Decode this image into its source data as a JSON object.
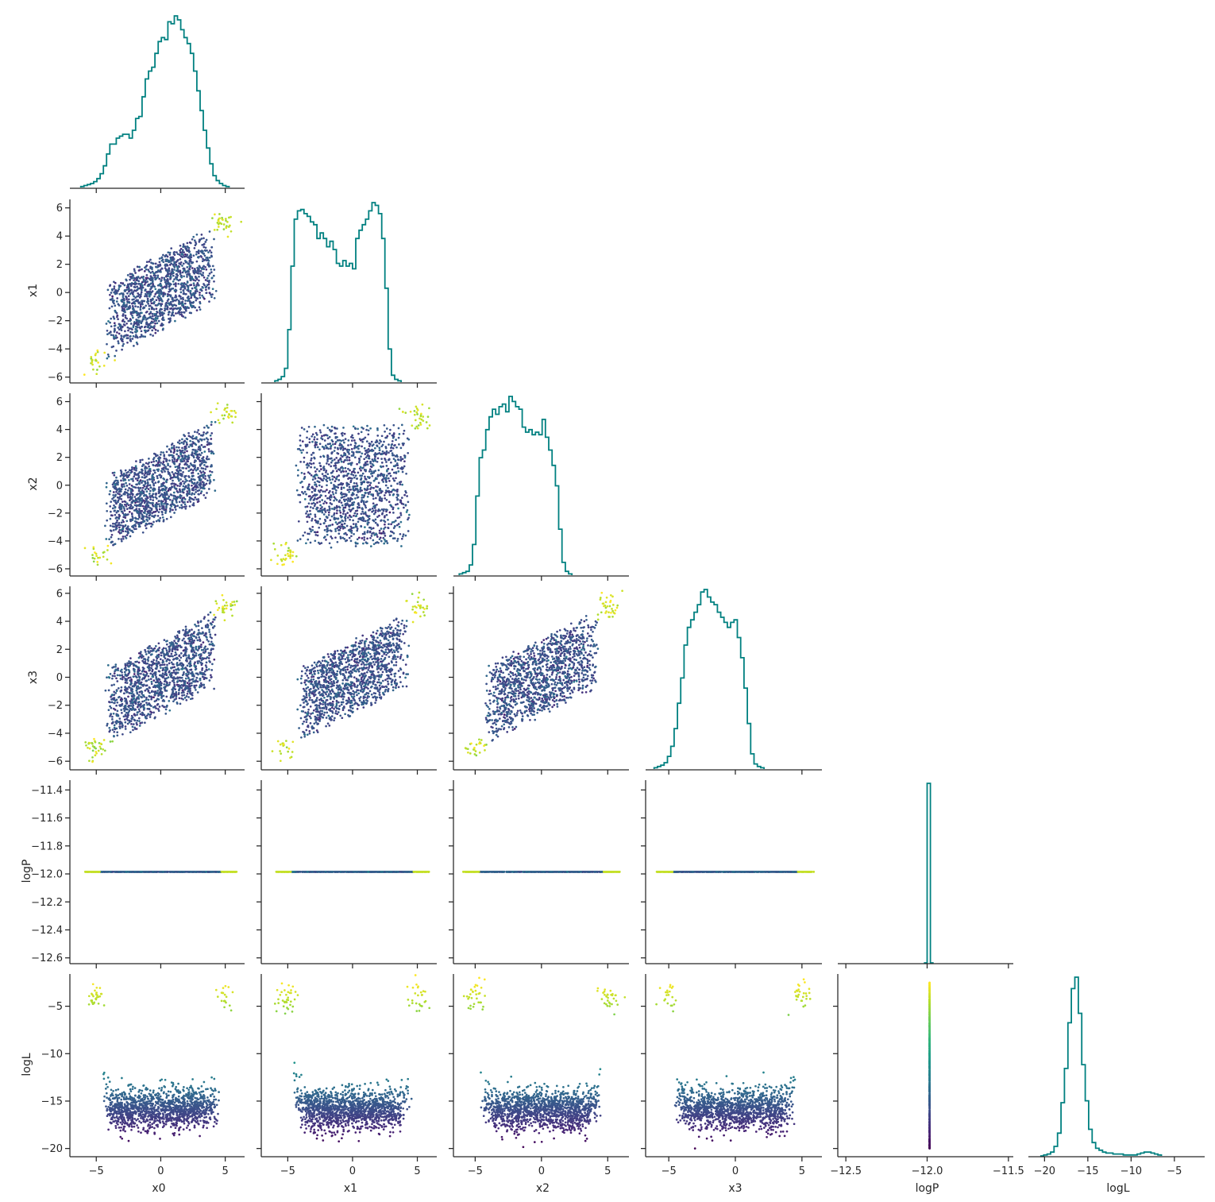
{
  "chart_data": {
    "type": "scatter",
    "title": "",
    "variables": [
      "x0",
      "x1",
      "x2",
      "x3",
      "logP",
      "logL"
    ],
    "color_by": "logL",
    "colormap": "viridis",
    "hist_color": "#008080",
    "grid": false,
    "legend": "none",
    "axes": {
      "x0": {
        "label": "x0",
        "range": [
          -6.8,
          6.5
        ],
        "ticks": [
          -5,
          0,
          5
        ],
        "tick_labels": [
          "−5",
          "0",
          "5"
        ]
      },
      "x1": {
        "label": "x1",
        "range": [
          -6.3,
          6.6
        ],
        "ticks": [
          -6,
          -4,
          -2,
          0,
          2,
          4,
          6
        ],
        "tick_labels": [
          "−6",
          "−4",
          "−2",
          "0",
          "2",
          "4",
          "6"
        ],
        "x_ticks": [
          -5,
          0,
          5
        ],
        "x_tick_labels": [
          "−5",
          "0",
          "5"
        ],
        "x_range": [
          -6.8,
          6.5
        ]
      },
      "x2": {
        "label": "x2",
        "range": [
          -6.4,
          6.6
        ],
        "ticks": [
          -6,
          -4,
          -2,
          0,
          2,
          4,
          6
        ],
        "tick_labels": [
          "−6",
          "−4",
          "−2",
          "0",
          "2",
          "4",
          "6"
        ],
        "x_ticks": [
          -5,
          0,
          5
        ],
        "x_tick_labels": [
          "−5",
          "0",
          "5"
        ],
        "x_range": [
          -6.4,
          6.6
        ]
      },
      "x3": {
        "label": "x3",
        "range": [
          -6.5,
          6.5
        ],
        "ticks": [
          -6,
          -4,
          -2,
          0,
          2,
          4,
          6
        ],
        "tick_labels": [
          "−6",
          "−4",
          "−2",
          "0",
          "2",
          "4",
          "6"
        ],
        "x_ticks": [
          -5,
          0,
          5
        ],
        "x_tick_labels": [
          "−5",
          "0",
          "5"
        ],
        "x_range": [
          -6.5,
          6.5
        ]
      },
      "logP": {
        "label": "logP",
        "range": [
          -12.63,
          -11.33
        ],
        "ticks": [
          -12.6,
          -12.4,
          -12.2,
          -12.0,
          -11.8,
          -11.6,
          -11.4
        ],
        "tick_labels": [
          "−12.6",
          "−12.4",
          "−12.2",
          "−12.0",
          "−11.8",
          "−11.6",
          "−11.4"
        ],
        "x_ticks": [
          -12.5,
          -12.0,
          -11.5
        ],
        "x_tick_labels": [
          "−12.5",
          "−12.0",
          "−11.5"
        ],
        "x_range": [
          -12.53,
          -11.47
        ]
      },
      "logL": {
        "label": "logL",
        "range": [
          -20.7,
          -1.6
        ],
        "ticks": [
          -20,
          -15,
          -10,
          -5
        ],
        "tick_labels": [
          "−20",
          "−15",
          "−10",
          "−5"
        ],
        "x_ticks": [
          -20,
          -15,
          -10,
          -5
        ],
        "x_tick_labels": [
          "−20",
          "−15",
          "−10",
          "−5"
        ],
        "x_range": [
          -21.5,
          -1.5
        ]
      }
    },
    "diagonal": {
      "x0": {
        "edges_start": -6.2,
        "bin_width": 0.25,
        "counts": [
          1,
          2,
          3,
          4,
          6,
          9,
          14,
          22,
          34,
          44,
          44,
          50,
          52,
          54,
          54,
          50,
          58,
          70,
          72,
          92,
          110,
          118,
          122,
          136,
          148,
          152,
          150,
          168,
          166,
          174,
          170,
          160,
          152,
          146,
          136,
          118,
          98,
          78,
          58,
          40,
          24,
          12,
          7,
          4,
          2,
          1
        ]
      },
      "x1": {
        "edges_start": -6.0,
        "bin_width": 0.25,
        "counts": [
          1,
          2,
          4,
          10,
          38,
          84,
          118,
          124,
          125,
          122,
          120,
          116,
          114,
          104,
          108,
          104,
          98,
          102,
          96,
          86,
          84,
          88,
          84,
          86,
          82,
          104,
          110,
          114,
          118,
          124,
          130,
          128,
          122,
          104,
          68,
          24,
          5,
          2,
          1
        ]
      },
      "x2": {
        "edges_start": -6.2,
        "bin_width": 0.25,
        "counts": [
          1,
          2,
          3,
          8,
          24,
          62,
          92,
          98,
          114,
          124,
          130,
          126,
          132,
          134,
          128,
          140,
          136,
          132,
          130,
          116,
          112,
          114,
          110,
          112,
          110,
          122,
          108,
          98,
          86,
          70,
          36,
          10,
          3,
          1
        ]
      },
      "x3": {
        "edges_start": -6.1,
        "bin_width": 0.25,
        "counts": [
          1,
          2,
          3,
          5,
          10,
          18,
          32,
          52,
          72,
          98,
          112,
          118,
          124,
          130,
          140,
          142,
          136,
          132,
          130,
          124,
          120,
          116,
          112,
          116,
          118,
          104,
          88,
          64,
          36,
          12,
          4,
          2,
          1
        ]
      },
      "logP": {
        "edges_start": -12.02,
        "bin_width": 0.02,
        "counts": [
          0,
          1,
          0
        ],
        "peak_value": -11.985
      },
      "logL": {
        "edges_start": -20.5,
        "bin_width": 0.4,
        "counts": [
          0,
          1,
          2,
          4,
          10,
          24,
          56,
          92,
          140,
          176,
          188,
          150,
          96,
          58,
          28,
          14,
          8,
          6,
          4,
          3,
          3,
          2,
          2,
          2,
          1,
          1,
          1,
          1,
          2,
          3,
          4,
          4,
          3,
          2,
          1
        ]
      }
    },
    "scatter_panels": [
      {
        "x": "x0",
        "y": "x1",
        "structure": "correlated_blob_with_corner_clusters"
      },
      {
        "x": "x0",
        "y": "x2",
        "structure": "correlated_blob_with_corner_clusters"
      },
      {
        "x": "x1",
        "y": "x2",
        "structure": "square_blob_with_corner_clusters"
      },
      {
        "x": "x0",
        "y": "x3",
        "structure": "correlated_blob_with_corner_clusters"
      },
      {
        "x": "x1",
        "y": "x3",
        "structure": "correlated_blob_with_corner_clusters"
      },
      {
        "x": "x2",
        "y": "x3",
        "structure": "correlated_blob_with_corner_clusters"
      },
      {
        "x": "x0",
        "y": "logP",
        "structure": "constant_line",
        "value": -11.985
      },
      {
        "x": "x1",
        "y": "logP",
        "structure": "constant_line",
        "value": -11.985
      },
      {
        "x": "x2",
        "y": "logP",
        "structure": "constant_line",
        "value": -11.985
      },
      {
        "x": "x3",
        "y": "logP",
        "structure": "constant_line",
        "value": -11.985
      },
      {
        "x": "x0",
        "y": "logL",
        "structure": "bowl"
      },
      {
        "x": "x1",
        "y": "logL",
        "structure": "bowl"
      },
      {
        "x": "x2",
        "y": "logL",
        "structure": "bowl"
      },
      {
        "x": "x3",
        "y": "logL",
        "structure": "bowl"
      },
      {
        "x": "logP",
        "y": "logL",
        "structure": "vertical_line",
        "value": -11.985
      }
    ],
    "generator": {
      "samples_per_panel": 1400,
      "central_halfwidth": 4.6,
      "corner_center": 5.0,
      "corner_fraction": 0.04,
      "logL_central_mean": -15.9,
      "logL_corner_mean": -4.0
    }
  }
}
